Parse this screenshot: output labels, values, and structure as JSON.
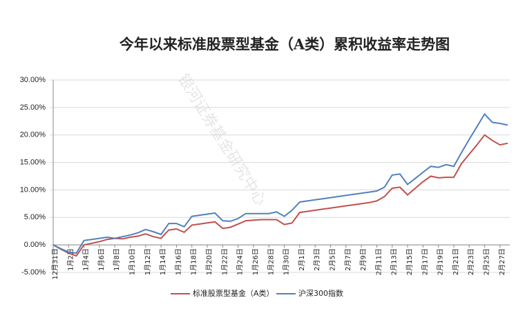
{
  "chart_data": {
    "type": "line",
    "title": "今年以来标准股票型基金（A类）累积收益率走势图",
    "watermark": "银河证券基金研究中心",
    "categories": [
      "12月31日",
      null,
      "1月2日",
      null,
      "1月4日",
      null,
      "1月6日",
      null,
      "1月8日",
      null,
      "1月10日",
      null,
      "1月12日",
      null,
      "1月14日",
      null,
      "1月16日",
      null,
      "1月18日",
      null,
      "1月20日",
      null,
      "1月22日",
      null,
      "1月24日",
      null,
      "1月26日",
      null,
      "1月28日",
      null,
      "1月30日",
      null,
      "2月1日",
      null,
      "2月3日",
      null,
      "2月5日",
      null,
      "2月7日",
      null,
      "2月9日",
      null,
      "2月11日",
      null,
      "2月13日",
      null,
      "2月15日",
      null,
      "2月17日",
      null,
      "2月19日",
      null,
      "2月21日",
      null,
      "2月23日",
      null,
      "2月25日",
      null,
      "2月27日",
      null
    ],
    "series": [
      {
        "name": "标准股票型基金（A类）",
        "color": "#c0504d",
        "values": [
          0,
          -0.8,
          -1.5,
          -2.0,
          0,
          0.3,
          0.6,
          1.0,
          1.2,
          1.1,
          1.4,
          1.6,
          2.0,
          1.5,
          1.2,
          2.7,
          2.9,
          2.3,
          3.6,
          3.8,
          4.0,
          4.2,
          3.0,
          3.2,
          3.8,
          4.4,
          4.5,
          4.6,
          4.6,
          4.6,
          3.7,
          4.0,
          5.9,
          6.1,
          6.3,
          6.5,
          6.7,
          6.9,
          7.1,
          7.3,
          7.5,
          7.7,
          8.0,
          8.8,
          10.3,
          10.5,
          9.1,
          10.3,
          11.5,
          12.5,
          12.2,
          12.3,
          12.3,
          14.8,
          16.5,
          18.2,
          20.0,
          19.0,
          18.2,
          18.5
        ]
      },
      {
        "name": "沪深300指数",
        "color": "#4f81bd",
        "values": [
          0,
          -0.7,
          -1.3,
          -1.5,
          0.8,
          1.0,
          1.2,
          1.4,
          1.2,
          1.5,
          1.8,
          2.2,
          2.8,
          2.4,
          1.9,
          3.9,
          3.9,
          3.3,
          5.2,
          5.4,
          5.6,
          5.8,
          4.4,
          4.3,
          4.8,
          5.7,
          5.7,
          5.7,
          5.7,
          6.0,
          5.2,
          6.3,
          7.8,
          8.0,
          8.2,
          8.4,
          8.6,
          8.8,
          9.0,
          9.2,
          9.4,
          9.6,
          9.8,
          10.5,
          12.7,
          12.9,
          11.0,
          12.1,
          13.2,
          14.3,
          14.1,
          14.6,
          14.3,
          16.8,
          19.2,
          21.5,
          23.8,
          22.3,
          22.1,
          21.8
        ]
      }
    ],
    "ylim": [
      -5,
      30
    ],
    "yticks": [
      {
        "value": -5,
        "label": "-5.00%"
      },
      {
        "value": 0,
        "label": "0.00%"
      },
      {
        "value": 5,
        "label": "5.00%"
      },
      {
        "value": 10,
        "label": "10.00%"
      },
      {
        "value": 15,
        "label": "15.00%"
      },
      {
        "value": 20,
        "label": "20.00%"
      },
      {
        "value": 25,
        "label": "25.00%"
      },
      {
        "value": 30,
        "label": "30.00%"
      }
    ],
    "grid": true
  }
}
